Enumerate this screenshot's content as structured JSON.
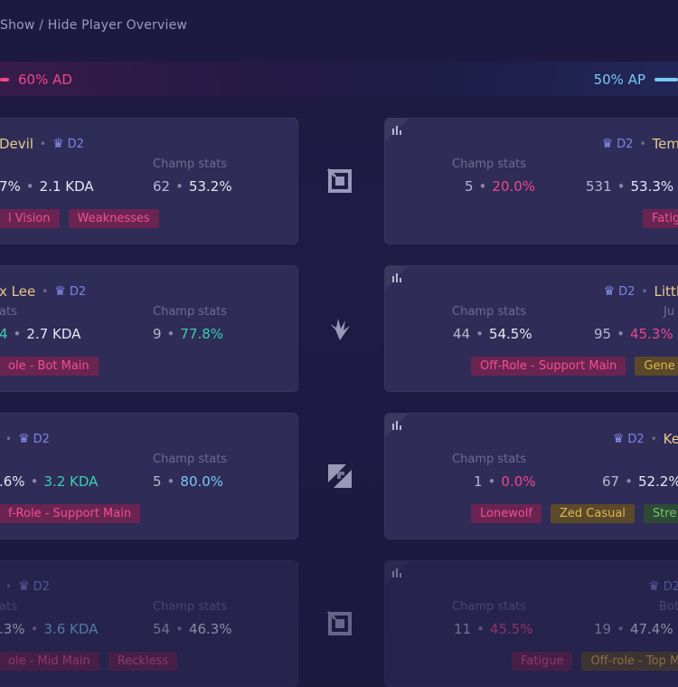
{
  "toggle_label": "Show / Hide Player Overview",
  "damage": {
    "left": "60% AD",
    "right": "50% AP"
  },
  "champ_stats_label": "Champ stats",
  "left_players": [
    {
      "name": "Devil",
      "rank": "D2",
      "win": "7%",
      "kda": "2.1 KDA",
      "champ_games": "62",
      "champ_wr": "53.2%",
      "tags": [
        "l Vision",
        "Weaknesses"
      ]
    },
    {
      "name": "x Lee",
      "rank": "D2",
      "stats_label": "ats",
      "win": "4",
      "kda": "2.7 KDA",
      "champ_games": "9",
      "champ_wr": "77.8%",
      "tags": [
        "ole - Bot Main"
      ]
    },
    {
      "name": "",
      "rank": "D2",
      "win": ".6%",
      "kda": "3.2 KDA",
      "champ_games": "5",
      "champ_wr": "80.0%",
      "tags": [
        "f-Role - Support Main"
      ]
    },
    {
      "name": "",
      "rank": "D2",
      "stats_label": "ats",
      "win": ".3%",
      "kda": "3.6 KDA",
      "champ_games": "54",
      "champ_wr": "46.3%",
      "tags": [
        "ole - Mid Main",
        "Reckless"
      ]
    }
  ],
  "right_players": [
    {
      "name": "Tem",
      "rank": "D2",
      "champ_games": "5",
      "champ_wr": "20.0%",
      "games": "531",
      "wr": "53.3%",
      "tags": [
        "Fatig"
      ]
    },
    {
      "name": "Littl",
      "rank": "D2",
      "stats_label": "Ju",
      "champ_games": "44",
      "champ_wr": "54.5%",
      "games": "95",
      "wr": "45.3%",
      "tags": [
        "Off-Role - Support Main",
        "Gene"
      ]
    },
    {
      "name": "Ke",
      "rank": "D2",
      "champ_games": "1",
      "champ_wr": "0.0%",
      "games": "67",
      "wr": "52.2%",
      "tags": [
        "Lonewolf",
        "Zed Casual",
        "Stre"
      ]
    },
    {
      "name": "",
      "rank": "D2",
      "stats_label": "Bot",
      "champ_games": "11",
      "champ_wr": "45.5%",
      "games": "19",
      "wr": "47.4%",
      "tags": [
        "Fatigue",
        "Off-role - Top M"
      ]
    }
  ],
  "icons": [
    "square-pattern-icon",
    "jungle-claw-icon",
    "diagonal-split-icon",
    "square-pattern-icon",
    "rank-emblem-icon",
    "bars-icon"
  ]
}
